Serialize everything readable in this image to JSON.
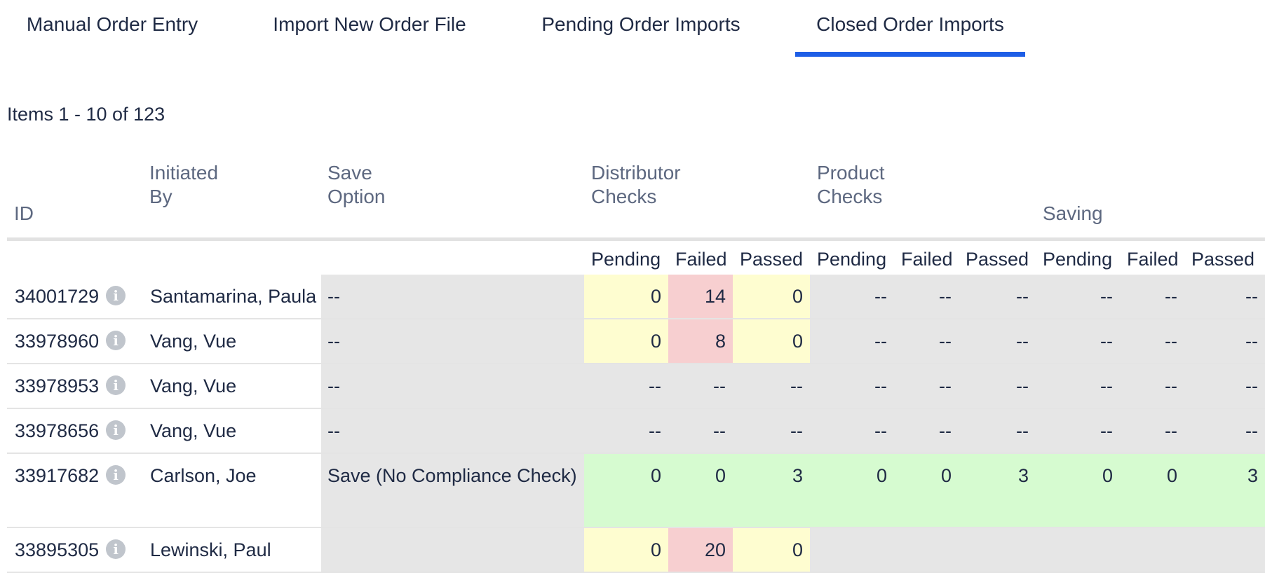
{
  "tabs": [
    {
      "label": "Manual Order Entry",
      "active": false
    },
    {
      "label": "Import New Order File",
      "active": false
    },
    {
      "label": "Pending Order Imports",
      "active": false
    },
    {
      "label": "Closed Order Imports",
      "active": true
    }
  ],
  "items_count": "Items 1 - 10 of 123",
  "headers": {
    "id": "ID",
    "initiated_by": [
      "Initiated",
      "By"
    ],
    "save_option": [
      "Save",
      "Option"
    ],
    "distributor_checks": [
      "Distributor",
      "Checks"
    ],
    "product_checks": [
      "Product",
      "Checks"
    ],
    "saving": "Saving"
  },
  "subheaders": [
    "Pending",
    "Failed",
    "Passed",
    "Pending",
    "Failed",
    "Passed",
    "Pending",
    "Failed",
    "Passed"
  ],
  "rows": [
    {
      "id": "34001729",
      "initiated_by": "Santamarina, Paula",
      "save_option": "--",
      "values": [
        "0",
        "14",
        "0",
        "--",
        "--",
        "--",
        "--",
        "--",
        "--"
      ],
      "status": [
        "yellow",
        "red",
        "yellow",
        "gray",
        "gray",
        "gray",
        "gray",
        "gray",
        "gray"
      ]
    },
    {
      "id": "33978960",
      "initiated_by": "Vang, Vue",
      "save_option": "--",
      "values": [
        "0",
        "8",
        "0",
        "--",
        "--",
        "--",
        "--",
        "--",
        "--"
      ],
      "status": [
        "yellow",
        "red",
        "yellow",
        "gray",
        "gray",
        "gray",
        "gray",
        "gray",
        "gray"
      ]
    },
    {
      "id": "33978953",
      "initiated_by": "Vang, Vue",
      "save_option": "--",
      "values": [
        "--",
        "--",
        "--",
        "--",
        "--",
        "--",
        "--",
        "--",
        "--"
      ],
      "status": [
        "gray",
        "gray",
        "gray",
        "gray",
        "gray",
        "gray",
        "gray",
        "gray",
        "gray"
      ]
    },
    {
      "id": "33978656",
      "initiated_by": "Vang, Vue",
      "save_option": "--",
      "values": [
        "--",
        "--",
        "--",
        "--",
        "--",
        "--",
        "--",
        "--",
        "--"
      ],
      "status": [
        "gray",
        "gray",
        "gray",
        "gray",
        "gray",
        "gray",
        "gray",
        "gray",
        "gray"
      ]
    },
    {
      "id": "33917682",
      "initiated_by": "Carlson, Joe",
      "save_option": "Save (No Compliance Check)",
      "values": [
        "0",
        "0",
        "3",
        "0",
        "0",
        "3",
        "0",
        "0",
        "3"
      ],
      "status": [
        "green",
        "green",
        "green",
        "green",
        "green",
        "green",
        "green",
        "green",
        "green"
      ]
    },
    {
      "id": "33895305",
      "initiated_by": "Lewinski, Paul",
      "save_option": "",
      "values": [
        "0",
        "20",
        "0",
        "",
        "",
        "",
        "",
        "",
        ""
      ],
      "status": [
        "yellow",
        "red",
        "yellow",
        "gray",
        "gray",
        "gray",
        "gray",
        "gray",
        "gray"
      ]
    }
  ],
  "colors": {
    "accent": "#1e5ee6",
    "text": "#1f2a44",
    "header_text": "#5d6880",
    "gray": "#e6e6e6",
    "yellow": "#fefdd0",
    "red": "#f7cfd0",
    "green": "#d6fbd0"
  },
  "icons": {
    "row_info": "info-icon"
  }
}
